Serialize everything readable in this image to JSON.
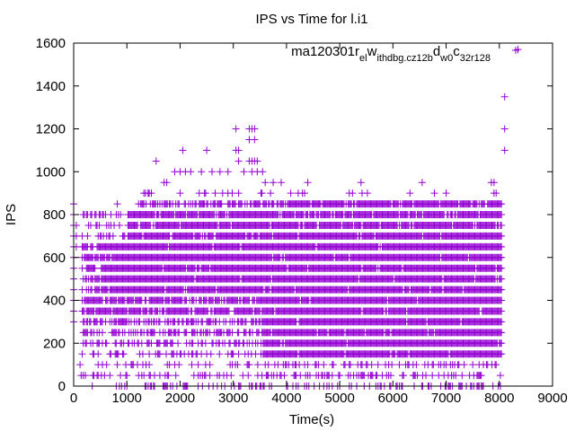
{
  "chart_data": {
    "type": "scatter",
    "title": "IPS vs Time for l.i1",
    "xlabel": "Time(s)",
    "ylabel": "IPS",
    "xlim": [
      0,
      9000
    ],
    "ylim": [
      0,
      1600
    ],
    "xticks": [
      0,
      1000,
      2000,
      3000,
      4000,
      5000,
      6000,
      7000,
      8000,
      9000
    ],
    "yticks": [
      0,
      200,
      400,
      600,
      800,
      1000,
      1200,
      1400,
      1600
    ],
    "grid": false,
    "legend_position": "top-right",
    "series": [
      {
        "name": "ma120301_rel_withdbg.cz12b_dw0_c32r128",
        "legend_parts": [
          {
            "text": "ma120301",
            "sub": false
          },
          {
            "text": "r",
            "sub": false
          },
          {
            "text": "el",
            "sub": true
          },
          {
            "text": "w",
            "sub": false
          },
          {
            "text": "ithdbg.cz12b",
            "sub": true
          },
          {
            "text": "d",
            "sub": false
          },
          {
            "text": "w0",
            "sub": true
          },
          {
            "text": "c",
            "sub": false
          },
          {
            "text": "32r128",
            "sub": true
          }
        ],
        "color": "#9400d3",
        "marker": "+",
        "dense_start": 0,
        "dense_end": 8050,
        "sample_step": 20,
        "y_levels": [
          150,
          200,
          250,
          300,
          350,
          400,
          450,
          500,
          550,
          600,
          650,
          700,
          750,
          800,
          850
        ],
        "outlier_points": [
          [
            0,
            850
          ],
          [
            0,
            800
          ],
          [
            0,
            750
          ],
          [
            0,
            700
          ],
          [
            0,
            650
          ],
          [
            0,
            600
          ],
          [
            0,
            550
          ],
          [
            0,
            500
          ],
          [
            0,
            450
          ],
          [
            0,
            400
          ],
          [
            0,
            350
          ],
          [
            0,
            300
          ],
          [
            50,
            750
          ],
          [
            50,
            700
          ],
          [
            50,
            650
          ],
          [
            350,
            0
          ],
          [
            800,
            0
          ],
          [
            900,
            0
          ],
          [
            600,
            800
          ],
          [
            700,
            800
          ],
          [
            1350,
            900
          ],
          [
            1400,
            900
          ],
          [
            1300,
            850
          ],
          [
            1550,
            1050
          ],
          [
            1700,
            950
          ],
          [
            1750,
            950
          ],
          [
            2050,
            1100
          ],
          [
            2500,
            1100
          ],
          [
            1900,
            1000
          ],
          [
            2000,
            1000
          ],
          [
            2100,
            1000
          ],
          [
            2200,
            1000
          ],
          [
            2400,
            1000
          ],
          [
            2600,
            1000
          ],
          [
            2750,
            1000
          ],
          [
            2900,
            1000
          ],
          [
            3050,
            1200
          ],
          [
            3050,
            1100
          ],
          [
            3100,
            1100
          ],
          [
            3100,
            1050
          ],
          [
            3300,
            1200
          ],
          [
            3350,
            1200
          ],
          [
            3400,
            1200
          ],
          [
            3300,
            1150
          ],
          [
            3400,
            1150
          ],
          [
            3300,
            1050
          ],
          [
            3350,
            1050
          ],
          [
            3400,
            1050
          ],
          [
            3450,
            1050
          ],
          [
            3200,
            1000
          ],
          [
            3350,
            1000
          ],
          [
            3450,
            1000
          ],
          [
            3550,
            1000
          ],
          [
            3600,
            950
          ],
          [
            3750,
            950
          ],
          [
            3900,
            950
          ],
          [
            4400,
            950
          ],
          [
            5400,
            950
          ],
          [
            6550,
            950
          ],
          [
            7850,
            950
          ],
          [
            7900,
            950
          ],
          [
            8100,
            1350
          ],
          [
            8100,
            1200
          ],
          [
            8100,
            1100
          ],
          [
            8350,
            1570
          ]
        ]
      }
    ]
  }
}
